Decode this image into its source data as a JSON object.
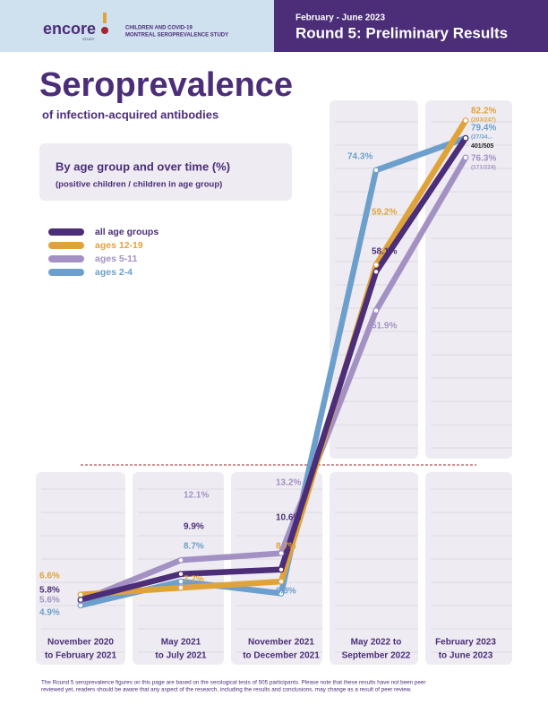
{
  "header": {
    "logo": "encore",
    "logo_sub": "STUDY",
    "study_line1": "CHILDREN AND COVID-19",
    "study_line2": "MONTREAL SEROPREVALENCE STUDY",
    "period": "February - June 2023",
    "round": "Round 5: Preliminary Results"
  },
  "chart_data": {
    "type": "line",
    "title": "Seroprevalence",
    "subtitle": "of infection-acquired antibodies",
    "box_title": "By age group and over time (%)",
    "box_subtitle": "(positive children / children in age group)",
    "categories": [
      [
        "November 2020",
        "to February 2021"
      ],
      [
        "May 2021",
        "to July 2021"
      ],
      [
        "November 2021",
        "to December 2021"
      ],
      [
        "May 2022 to",
        "September 2022"
      ],
      [
        "February 2023",
        "to June 2023"
      ]
    ],
    "ylim": [
      0,
      100
    ],
    "series": [
      {
        "name": "ages 2-4",
        "color": "#6c9fcb",
        "values": [
          4.9,
          8.7,
          6.8,
          74.3,
          79.4
        ],
        "value_labels": [
          "4.9%",
          "8.7%",
          "6.8%",
          "74.3%",
          "79.4%"
        ],
        "counts": [
          null,
          null,
          null,
          null,
          "(27/34..."
        ]
      },
      {
        "name": "ages 5-11",
        "color": "#a491c4",
        "values": [
          5.6,
          12.1,
          13.2,
          51.9,
          76.3
        ],
        "value_labels": [
          "5.6%",
          "12.1%",
          "13.2%",
          "51.9%",
          "76.3%"
        ],
        "counts": [
          null,
          null,
          null,
          null,
          "(171/224)"
        ]
      },
      {
        "name": "ages 12-19",
        "color": "#e0a33a",
        "values": [
          6.6,
          7.7,
          8.7,
          59.2,
          82.2
        ],
        "value_labels": [
          "6.6%",
          "7.7%",
          "8.7%",
          "59.2%",
          "82.2%"
        ],
        "counts": [
          null,
          null,
          null,
          null,
          "(203/247)"
        ]
      },
      {
        "name": "all age groups",
        "color": "#4b2d78",
        "values": [
          5.8,
          9.9,
          10.6,
          58.1,
          79.4
        ],
        "value_labels": [
          "5.8%",
          "9.9%",
          "10.6%",
          "58.1%",
          null
        ],
        "counts": [
          null,
          null,
          null,
          null,
          "401/505"
        ]
      }
    ]
  },
  "footnote": [
    "The Round 5 seroprevalence figures on this page are based on the serological tests of 505 participants. Please note that these results have not been peer",
    "reviewed yet, readers should be aware that any aspect of the research, including the results and conclusions, may change as a result of peer review."
  ]
}
